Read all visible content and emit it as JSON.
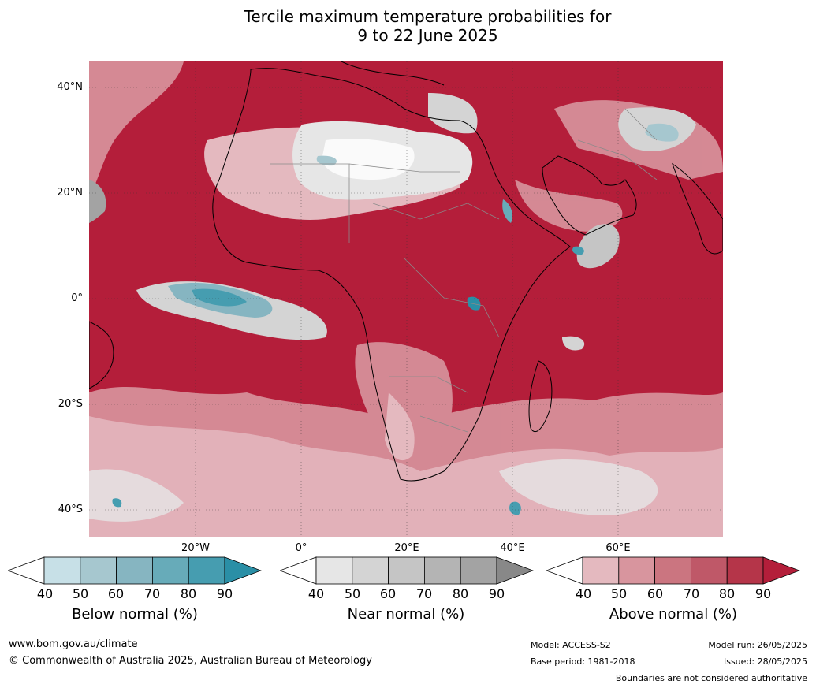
{
  "title": {
    "line1": "Tercile maximum temperature probabilities for",
    "line2": "9 to 22 June 2025"
  },
  "map": {
    "region": "Africa, Middle East and surrounding oceans",
    "base_color": "#b41e3a",
    "lat_labels": [
      "40°N",
      "20°N",
      "0°",
      "20°S",
      "40°S"
    ],
    "lon_labels": [
      "20°W",
      "0°",
      "20°E",
      "40°E",
      "60°E"
    ]
  },
  "colorbars": [
    {
      "label": "Below normal (%)",
      "ticks": [
        "40",
        "50",
        "60",
        "70",
        "80",
        "90"
      ],
      "colors": [
        "#ffffff",
        "#c7e0e7",
        "#a6c7cf",
        "#86b5c1",
        "#67abb9",
        "#469db0",
        "#2a8fa6"
      ]
    },
    {
      "label": "Near normal (%)",
      "ticks": [
        "40",
        "50",
        "60",
        "70",
        "80",
        "90"
      ],
      "colors": [
        "#ffffff",
        "#e6e6e6",
        "#d4d4d4",
        "#c5c5c5",
        "#b4b4b4",
        "#a3a3a3",
        "#888888"
      ]
    },
    {
      "label": "Above normal (%)",
      "ticks": [
        "40",
        "50",
        "60",
        "70",
        "80",
        "90"
      ],
      "colors": [
        "#ffffff",
        "#e4b9bf",
        "#d8959e",
        "#cb7580",
        "#bf5868",
        "#b53549",
        "#b41e3a"
      ]
    }
  ],
  "footer": {
    "url": "www.bom.gov.au/climate",
    "copyright": "© Commonwealth of Australia 2025, Australian Bureau of Meteorology",
    "model": "Model: ACCESS-S2",
    "base_period": "Base period: 1981-2018",
    "model_run": "Model run: 26/05/2025",
    "issued": "Issued: 28/05/2025",
    "disclaimer": "Boundaries are not considered authoritative"
  }
}
